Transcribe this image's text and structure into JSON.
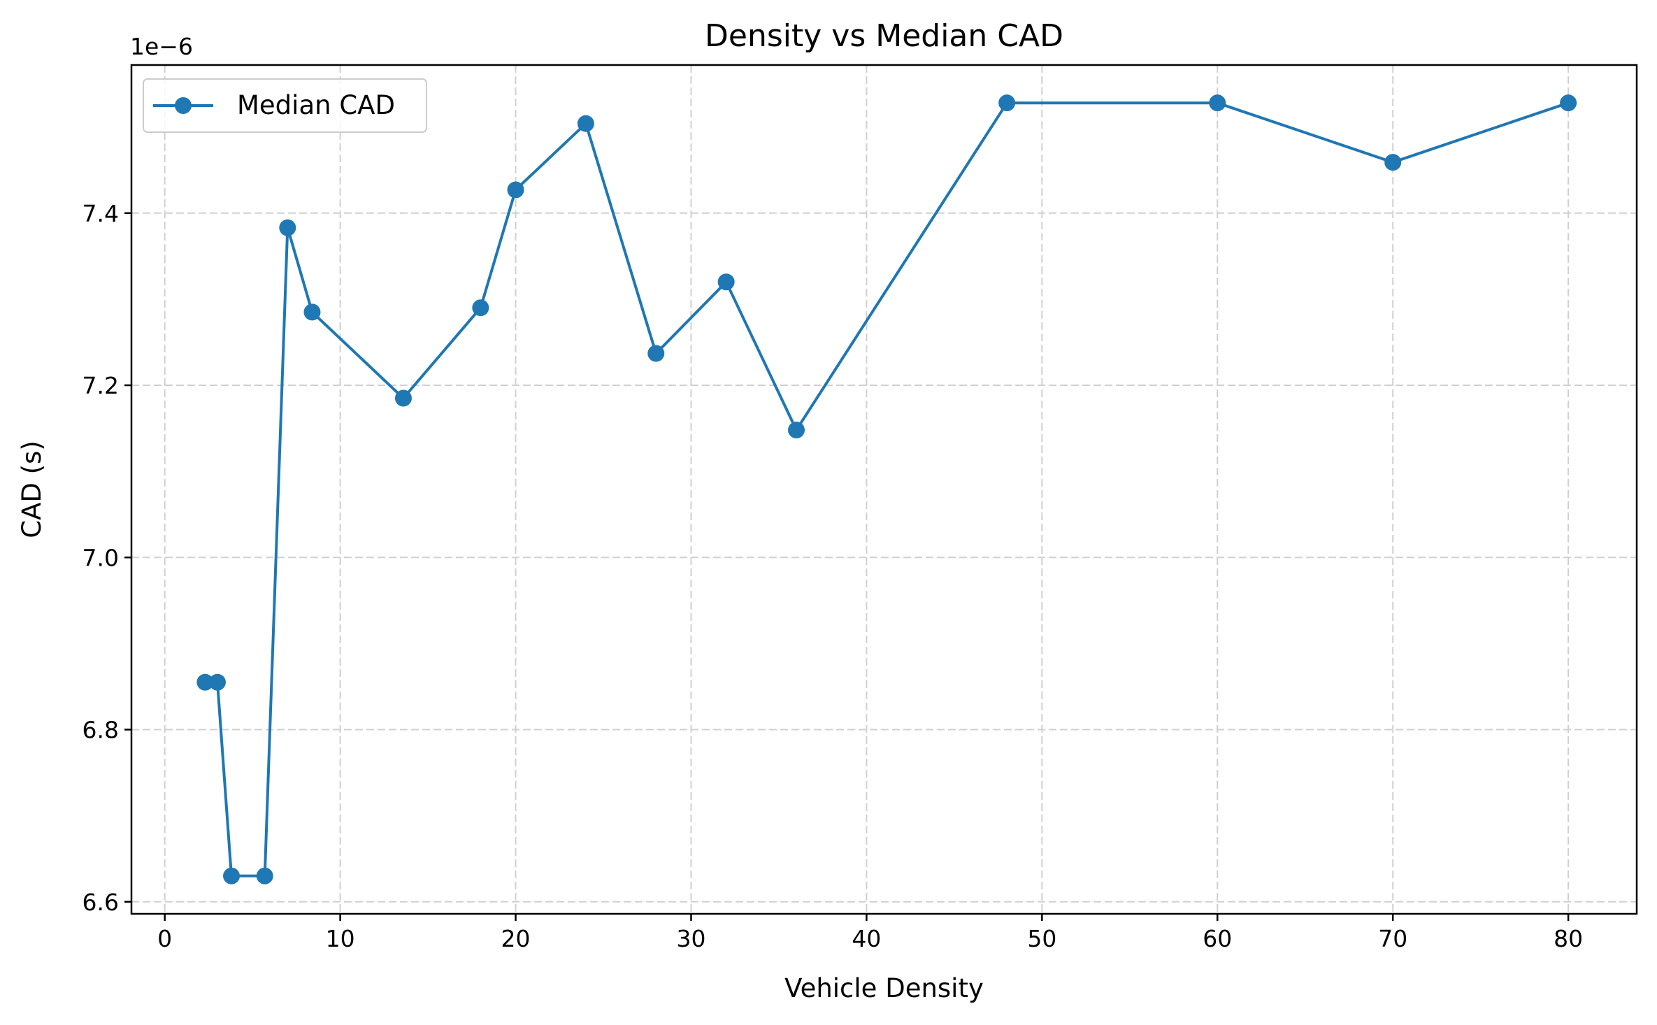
{
  "chart_data": {
    "type": "line",
    "title": "Density vs Median CAD",
    "xlabel": "Vehicle Density",
    "ylabel": "CAD (s)",
    "y_offset_label": "1e−6",
    "y_scale_factor": 1e-06,
    "xlim": [
      -1.9,
      83.9
    ],
    "ylim": [
      6.586,
      7.572
    ],
    "x_ticks": [
      0,
      10,
      20,
      30,
      40,
      50,
      60,
      70,
      80
    ],
    "x_tick_labels": [
      "0",
      "10",
      "20",
      "30",
      "40",
      "50",
      "60",
      "70",
      "80"
    ],
    "y_ticks": [
      6.6,
      6.8,
      7.0,
      7.2,
      7.4
    ],
    "y_tick_labels": [
      "6.6",
      "6.8",
      "7.0",
      "7.2",
      "7.4"
    ],
    "grid": true,
    "legend_position": "top-left",
    "series": [
      {
        "name": "Median CAD",
        "color": "#1f77b4",
        "marker": "circle",
        "x": [
          2.3,
          3.0,
          3.8,
          5.7,
          7.0,
          8.4,
          13.6,
          18.0,
          20.0,
          24.0,
          28.0,
          32.0,
          36.0,
          48.0,
          60.0,
          70.0,
          80.0
        ],
        "y": [
          6.855,
          6.855,
          6.63,
          6.63,
          7.383,
          7.285,
          7.185,
          7.29,
          7.427,
          7.504,
          7.237,
          7.32,
          7.148,
          7.528,
          7.528,
          7.459,
          7.528
        ]
      }
    ]
  }
}
